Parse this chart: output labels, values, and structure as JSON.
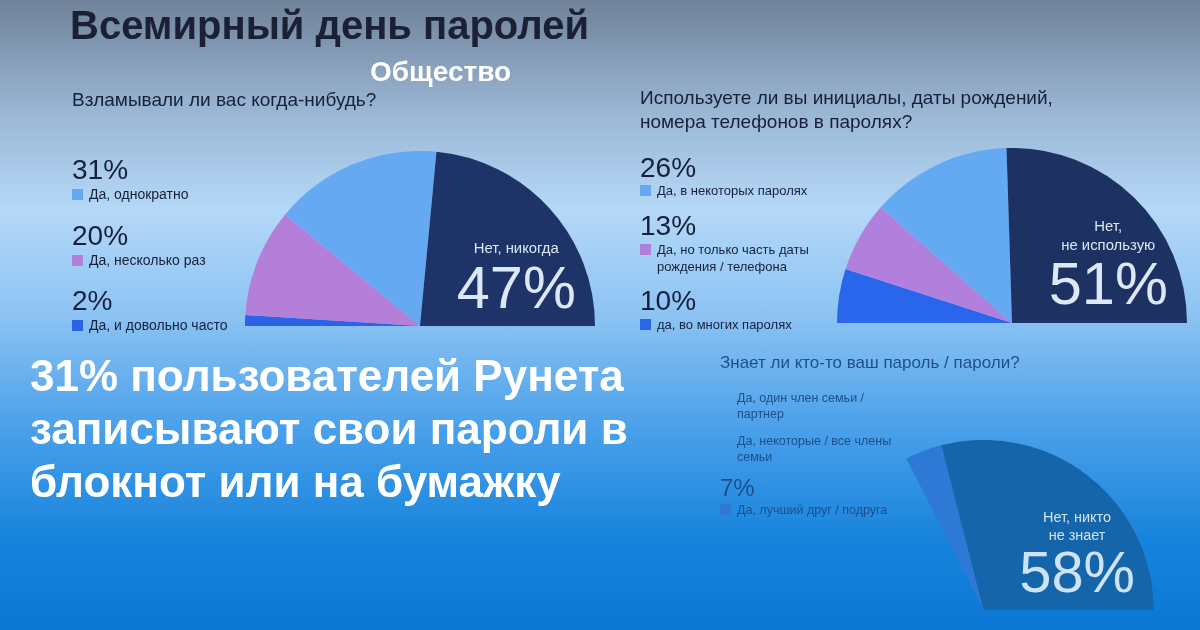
{
  "chart_data": [
    {
      "type": "other",
      "title": "Всемирный день паролей",
      "annotations": [
        "Общество",
        "31% пользователей Рунета записывают свои пароли в блокнот или на бумажку"
      ]
    },
    {
      "type": "pie",
      "title": "Взламывали ли вас когда-нибудь?",
      "categories": [
        "Да, и довольно часто",
        "Да, несколько раз",
        "Да, однократно",
        "Нет, никогда"
      ],
      "values": [
        2,
        20,
        31,
        47
      ],
      "value_labels": [
        "2%",
        "20%",
        "31%",
        "47%"
      ],
      "colors": [
        "#2a63e6",
        "#b47fd9",
        "#64a9f1",
        "#1e3468"
      ],
      "legend": "left"
    },
    {
      "type": "pie",
      "title": "Используете ли вы инициалы, даты рождений, номера телефонов в паролях?",
      "categories": [
        "да, во многих паролях",
        "Да, но только часть даты рождения / телефона",
        "Да, в некоторых паролях",
        "Нет,\nне использую"
      ],
      "values": [
        10,
        13,
        26,
        51
      ],
      "value_labels": [
        "10%",
        "13%",
        "26%",
        "51%"
      ],
      "colors": [
        "#2a66ec",
        "#b080dc",
        "#63aaf2",
        "#1d3262"
      ],
      "legend": "left"
    },
    {
      "type": "pie",
      "title": "Знает ли кто-то ваш пароль / пароли?",
      "categories": [
        "Да, лучший друг / подруга",
        "Да, некоторые / все члены семьи",
        "Да, один член семьи / партнер",
        "Нет, никто\nне знает"
      ],
      "values": [
        7,
        null,
        null,
        58
      ],
      "value_labels": [
        "7%",
        null,
        null,
        "58%"
      ],
      "colors": [
        "#2e78d6",
        null,
        null,
        "#1565ab"
      ],
      "legend": "left"
    }
  ]
}
